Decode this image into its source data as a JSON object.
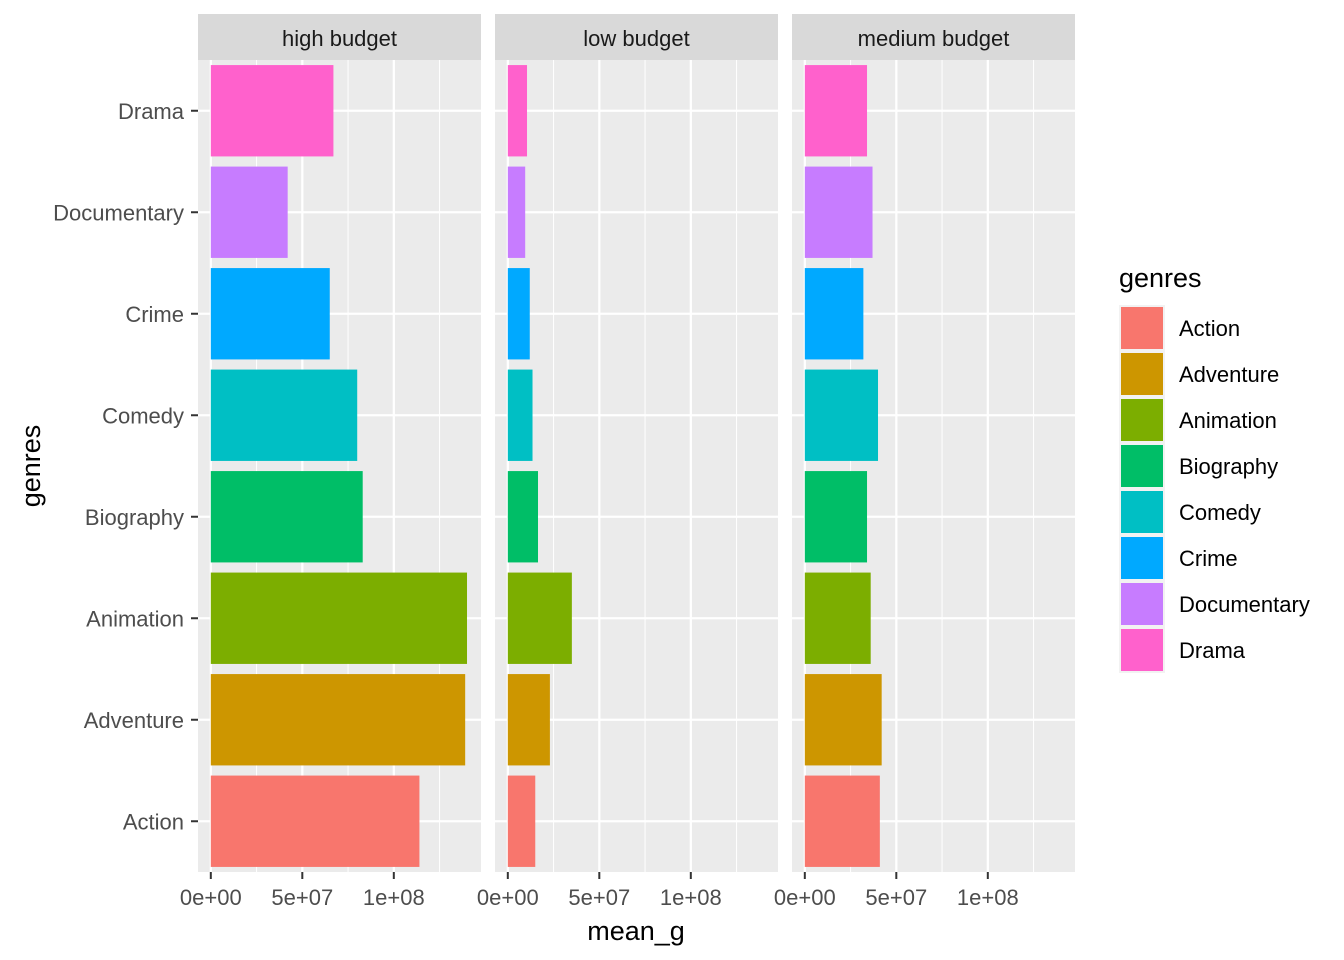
{
  "chart_data": {
    "type": "bar",
    "orientation": "horizontal",
    "facet_variable": "budget",
    "xlabel": "mean_g",
    "ylabel": "genres",
    "xlim": [
      0,
      140000000
    ],
    "x_ticks": [
      0,
      50000000,
      100000000
    ],
    "x_tick_labels": [
      "0e+00",
      "5e+07",
      "1e+08"
    ],
    "categories": [
      "Action",
      "Adventure",
      "Animation",
      "Biography",
      "Comedy",
      "Crime",
      "Documentary",
      "Drama"
    ],
    "colors": {
      "Action": "#F8766D",
      "Adventure": "#CD9600",
      "Animation": "#7CAE00",
      "Biography": "#00BE67",
      "Comedy": "#00BFC4",
      "Crime": "#00A9FF",
      "Documentary": "#C77CFF",
      "Drama": "#FF61CC"
    },
    "facets": [
      {
        "label": "high budget",
        "values": [
          114000000,
          139000000,
          140000000,
          83000000,
          80000000,
          65000000,
          42000000,
          67000000
        ]
      },
      {
        "label": "low budget",
        "values": [
          15000000,
          23000000,
          35000000,
          16500000,
          13500000,
          12000000,
          9500000,
          10500000
        ]
      },
      {
        "label": "medium budget",
        "values": [
          41000000,
          42000000,
          36000000,
          34000000,
          40000000,
          32000000,
          37000000,
          34000000
        ]
      }
    ],
    "legend": {
      "title": "genres",
      "position": "right",
      "items": [
        "Action",
        "Adventure",
        "Animation",
        "Biography",
        "Comedy",
        "Crime",
        "Documentary",
        "Drama"
      ]
    },
    "grid": true
  }
}
